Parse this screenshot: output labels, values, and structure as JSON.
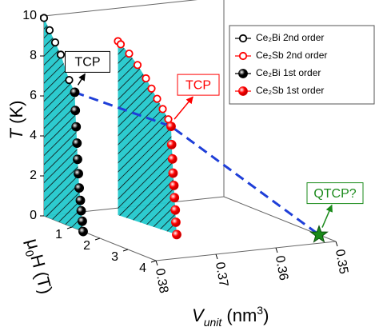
{
  "chart_data": {
    "type": "scatter3d",
    "xlabel": [
      "V",
      "unit",
      " (nm",
      "3",
      ")"
    ],
    "ylabel": [
      "μ",
      "0",
      "H",
      " (T)"
    ],
    "zlabel": [
      "T",
      " (K)"
    ],
    "xlim": [
      0.38,
      0.35
    ],
    "xticks": [
      0.38,
      0.37,
      0.36,
      0.35
    ],
    "ylim": [
      0,
      4
    ],
    "yticks": [
      1,
      2,
      3,
      4
    ],
    "zlim": [
      0,
      10
    ],
    "zticks": [
      0,
      2,
      4,
      6,
      8,
      10
    ],
    "fill_color": "#22c8cc",
    "series": [
      {
        "name": "Ce₂Bi 2nd order",
        "color": "#000000",
        "marker": "open",
        "x": [
          0.38,
          0.38,
          0.38,
          0.38,
          0.38,
          0.38
        ],
        "y": [
          0,
          0.2,
          0.4,
          0.6,
          0.9,
          1.1
        ],
        "z": [
          9.9,
          9.4,
          8.9,
          8.4,
          7.3,
          6.8
        ]
      },
      {
        "name": "Ce₂Sb 2nd order",
        "color": "#ff0000",
        "marker": "open",
        "x": [
          0.37,
          0.37,
          0.37,
          0.37,
          0.37,
          0.37,
          0.37,
          0.37,
          0.37
        ],
        "y": [
          0.5,
          0.6,
          0.9,
          1.2,
          1.5,
          1.7,
          1.9,
          2.1,
          2.3
        ],
        "z": [
          8.7,
          8.6,
          8.3,
          7.9,
          7.4,
          7.0,
          6.6,
          6.2,
          5.8
        ]
      },
      {
        "name": "Ce₂Bi 1st order",
        "color": "#000000",
        "marker": "filled",
        "x": [
          0.38,
          0.38,
          0.38,
          0.38,
          0.38,
          0.38,
          0.38,
          0.38,
          0.38,
          0.38,
          0.38
        ],
        "y": [
          1.1,
          1.12,
          1.15,
          1.18,
          1.2,
          1.23,
          1.26,
          1.3,
          1.33,
          1.37,
          1.4
        ],
        "z": [
          6.8,
          5.9,
          5.1,
          4.3,
          3.5,
          2.8,
          2.1,
          1.5,
          1.0,
          0.5,
          0.0
        ]
      },
      {
        "name": "Ce₂Sb 1st order",
        "color": "#ff0000",
        "marker": "filled",
        "x": [
          0.37,
          0.37,
          0.37,
          0.37,
          0.37,
          0.37,
          0.37,
          0.37,
          0.37
        ],
        "y": [
          2.4,
          2.42,
          2.45,
          2.47,
          2.5,
          2.52,
          2.55,
          2.57,
          2.6
        ],
        "z": [
          5.5,
          4.6,
          3.9,
          3.2,
          2.6,
          2.0,
          1.4,
          0.8,
          0.2
        ]
      }
    ],
    "critical_line": {
      "color": "#1f3fd8",
      "x": [
        0.38,
        0.37,
        0.35
      ],
      "y": [
        1.1,
        2.4,
        3.4
      ],
      "z": [
        6.8,
        5.5,
        0
      ]
    },
    "annotations": [
      {
        "text": "TCP",
        "color": "#000000"
      },
      {
        "text": "TCP",
        "color": "#ff0000"
      },
      {
        "text": "QTCP?",
        "color": "#1a8a1a"
      }
    ]
  }
}
